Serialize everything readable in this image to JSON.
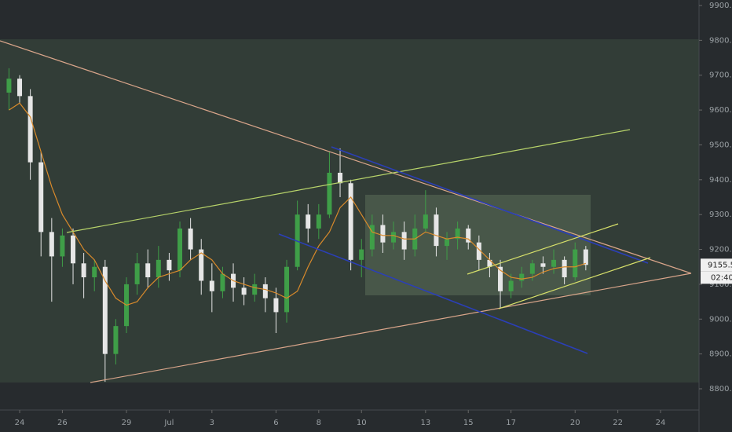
{
  "chart_data": {
    "type": "candlestick",
    "x": [
      -0.5,
      0,
      0.5,
      1,
      1.5,
      2,
      2.5,
      3,
      3.5,
      4,
      4.5,
      5,
      5.5,
      6,
      6.5,
      7,
      7.5,
      8,
      8.5,
      9,
      9.5,
      10,
      10.5,
      11,
      11.5,
      12,
      12.5,
      13,
      13.5,
      14,
      14.5,
      15,
      15.5,
      16,
      16.5,
      17,
      17.5,
      18,
      18.5,
      19,
      19.5,
      20,
      20.5,
      21,
      21.5,
      22,
      22.5,
      23,
      23.5,
      24,
      24.5,
      25,
      25.5,
      26,
      26.5
    ],
    "open": [
      9650,
      9690,
      9640,
      9450,
      9250,
      9180,
      9240,
      9160,
      9120,
      9150,
      8900,
      8980,
      9100,
      9160,
      9120,
      9170,
      9140,
      9260,
      9200,
      9110,
      9080,
      9130,
      9090,
      9070,
      9100,
      9060,
      9020,
      9150,
      9300,
      9260,
      9300,
      9420,
      9390,
      9170,
      9200,
      9270,
      9220,
      9250,
      9200,
      9260,
      9300,
      9210,
      9230,
      9260,
      9220,
      9170,
      9150,
      9080,
      9110,
      9130,
      9160,
      9150,
      9170,
      9120,
      9200
    ],
    "high": [
      9720,
      9700,
      9660,
      9480,
      9290,
      9260,
      9260,
      9190,
      9170,
      9170,
      9000,
      9120,
      9190,
      9200,
      9210,
      9190,
      9280,
      9290,
      9230,
      9160,
      9150,
      9160,
      9120,
      9130,
      9120,
      9090,
      9170,
      9340,
      9330,
      9330,
      9480,
      9490,
      9400,
      9230,
      9300,
      9300,
      9280,
      9280,
      9300,
      9370,
      9320,
      9250,
      9280,
      9270,
      9240,
      9190,
      9170,
      9130,
      9150,
      9170,
      9180,
      9200,
      9180,
      9220,
      9210
    ],
    "low": [
      9600,
      9620,
      9400,
      9180,
      9050,
      9150,
      9100,
      9060,
      9080,
      8820,
      8870,
      8960,
      9070,
      9090,
      9090,
      9110,
      9120,
      9170,
      9070,
      9020,
      9060,
      9050,
      9040,
      9050,
      9020,
      8960,
      8990,
      9140,
      9220,
      9230,
      9290,
      9350,
      9140,
      9120,
      9180,
      9190,
      9200,
      9170,
      9180,
      9250,
      9180,
      9170,
      9200,
      9200,
      9140,
      9120,
      9030,
      9060,
      9090,
      9110,
      9130,
      9130,
      9100,
      9110,
      9140
    ],
    "close": [
      9690,
      9640,
      9450,
      9250,
      9180,
      9240,
      9160,
      9120,
      9150,
      8900,
      8980,
      9100,
      9160,
      9120,
      9170,
      9140,
      9260,
      9200,
      9110,
      9080,
      9130,
      9090,
      9070,
      9100,
      9060,
      9020,
      9150,
      9300,
      9260,
      9300,
      9420,
      9390,
      9170,
      9200,
      9270,
      9220,
      9250,
      9200,
      9260,
      9300,
      9210,
      9230,
      9260,
      9220,
      9170,
      9150,
      9080,
      9110,
      9130,
      9160,
      9150,
      9170,
      9120,
      9200,
      9155.5
    ],
    "ma": [
      9600,
      9620,
      9580,
      9480,
      9380,
      9300,
      9250,
      9200,
      9170,
      9110,
      9060,
      9040,
      9050,
      9090,
      9120,
      9130,
      9140,
      9170,
      9190,
      9170,
      9130,
      9110,
      9100,
      9090,
      9085,
      9075,
      9060,
      9080,
      9150,
      9210,
      9250,
      9320,
      9350,
      9300,
      9250,
      9240,
      9240,
      9230,
      9230,
      9250,
      9240,
      9230,
      9235,
      9230,
      9200,
      9170,
      9140,
      9120,
      9115,
      9120,
      9135,
      9145,
      9150,
      9150,
      9160
    ],
    "up_color": "#3f9e48",
    "down_color": "#e6e6e6",
    "ma_color": "#d98a2b",
    "xlim": [
      -0.92,
      31.8
    ],
    "xticks": [
      {
        "value": 0,
        "label": "24"
      },
      {
        "value": 2,
        "label": "26"
      },
      {
        "value": 5,
        "label": "29"
      },
      {
        "value": 7,
        "label": "Jul"
      },
      {
        "value": 9,
        "label": "3"
      },
      {
        "value": 12,
        "label": "6"
      },
      {
        "value": 14,
        "label": "8"
      },
      {
        "value": 16,
        "label": "10"
      },
      {
        "value": 19,
        "label": "13"
      },
      {
        "value": 21,
        "label": "15"
      },
      {
        "value": 23,
        "label": "17"
      },
      {
        "value": 26,
        "label": "20"
      },
      {
        "value": 28,
        "label": "22"
      },
      {
        "value": 30,
        "label": "24"
      }
    ],
    "ylim": [
      8800,
      9900
    ],
    "yticks": [
      {
        "value": 8800,
        "label": "8800.0"
      },
      {
        "value": 8900,
        "label": "8900.0"
      },
      {
        "value": 9000,
        "label": "9000.0"
      },
      {
        "value": 9100,
        "label": "9100.0"
      },
      {
        "value": 9200,
        "label": "9200.0"
      },
      {
        "value": 9300,
        "label": "9300.0"
      },
      {
        "value": 9400,
        "label": "9400.0"
      },
      {
        "value": 9500,
        "label": "9500.0"
      },
      {
        "value": 9600,
        "label": "9600.0"
      },
      {
        "value": 9700,
        "label": "9700.0"
      },
      {
        "value": 9800,
        "label": "9800.0"
      },
      {
        "value": 9900,
        "label": "9900.0"
      }
    ],
    "last_price": 9155.5,
    "countdown": "02:40"
  }
}
